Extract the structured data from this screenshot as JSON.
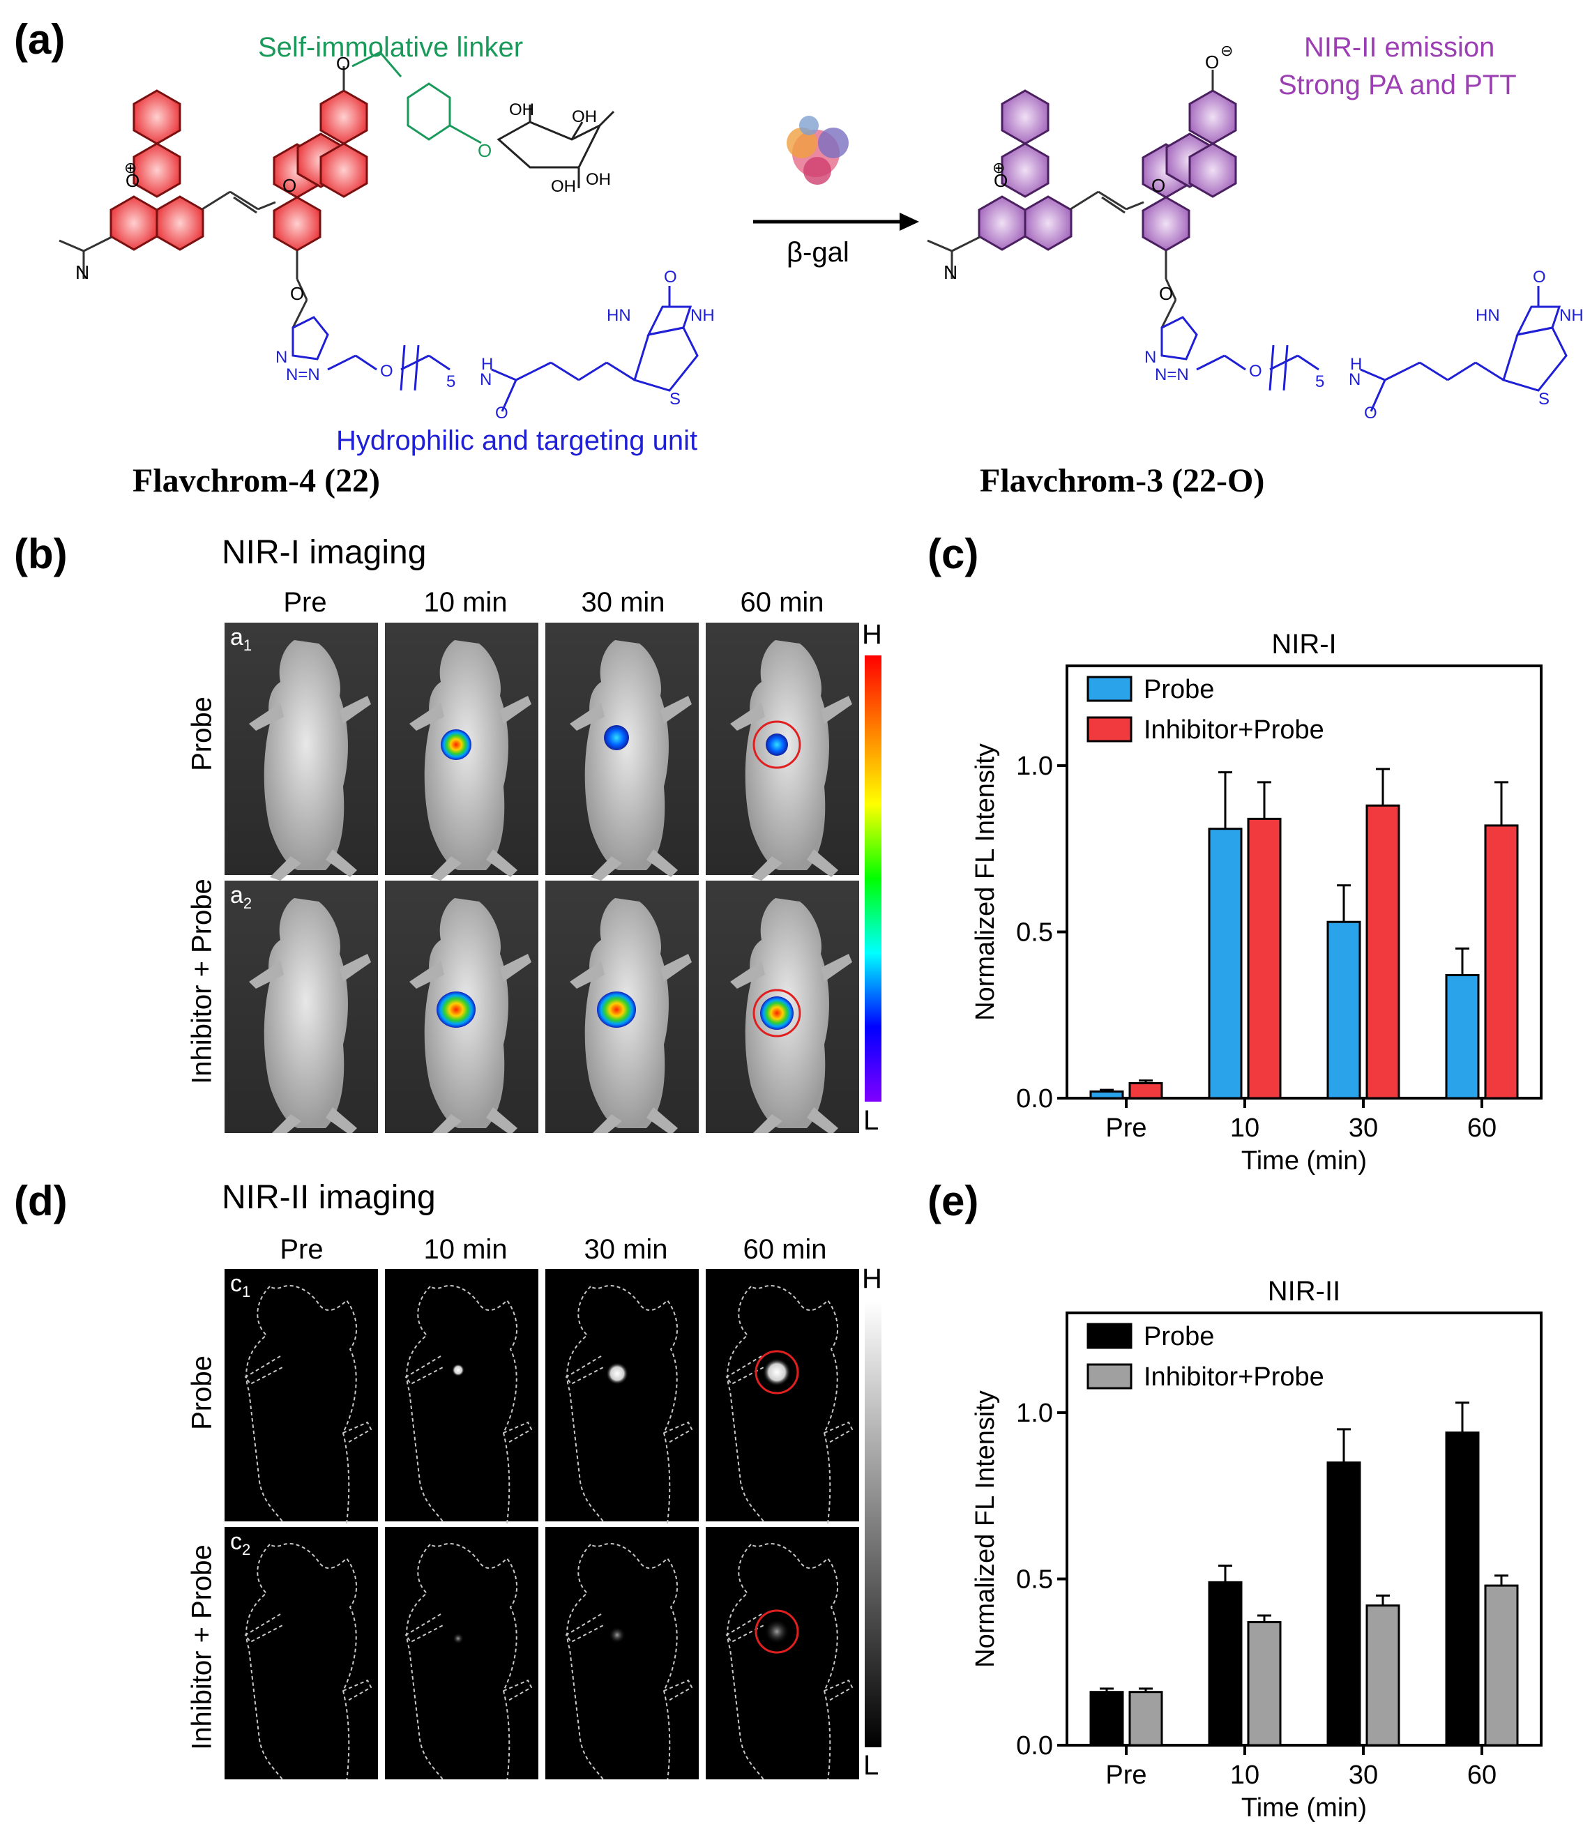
{
  "panel_a": {
    "label": "(a)",
    "linker_label": "Self-immolative linker",
    "emission_label_1": "NIR-II emission",
    "emission_label_2": "Strong PA and PTT",
    "arrow_label": "β-gal",
    "unit_label": "Hydrophilic and targeting unit",
    "compound_left": "Flavchrom-4 (22)",
    "compound_right": "Flavchrom-3 (22-O)",
    "colors": {
      "left_core": "#e8262b",
      "right_core": "#9b59b6",
      "linker": "#1a9a5a",
      "targeting": "#1f1fd6",
      "emission_text": "#9b3fb3"
    }
  },
  "panel_b": {
    "label": "(b)",
    "title": "NIR-I imaging",
    "times": [
      "Pre",
      "10 min",
      "30 min",
      "60 min"
    ],
    "rows": [
      "Probe",
      "Inhibitor + Probe"
    ],
    "corner_1": "a",
    "corner_1_sub": "1",
    "corner_2": "a",
    "corner_2_sub": "2",
    "scale_high": "H",
    "scale_low": "L"
  },
  "panel_d": {
    "label": "(d)",
    "title": "NIR-II imaging",
    "times": [
      "Pre",
      "10 min",
      "30 min",
      "60 min"
    ],
    "rows": [
      "Probe",
      "Inhibitor + Probe"
    ],
    "corner_1": "c",
    "corner_1_sub": "1",
    "corner_2": "c",
    "corner_2_sub": "2",
    "scale_high": "H",
    "scale_low": "L"
  },
  "chart_data": [
    {
      "panel": "(c)",
      "type": "bar",
      "title": "NIR-I",
      "xlabel": "Time (min)",
      "ylabel": "Normalized FL Intensity",
      "categories": [
        "Pre",
        "10",
        "30",
        "60"
      ],
      "ylim": [
        0,
        1.3
      ],
      "yticks": [
        "0.0",
        "0.5",
        "1.0"
      ],
      "legend_position": "top-left",
      "series": [
        {
          "name": "Probe",
          "color": "#2aa3ea",
          "values": [
            0.02,
            0.81,
            0.53,
            0.37
          ],
          "errors": [
            0.005,
            0.17,
            0.11,
            0.08
          ]
        },
        {
          "name": "Inhibitor+Probe",
          "color": "#f03a3e",
          "values": [
            0.045,
            0.84,
            0.88,
            0.82
          ],
          "errors": [
            0.008,
            0.11,
            0.11,
            0.13
          ]
        }
      ]
    },
    {
      "panel": "(e)",
      "type": "bar",
      "title": "NIR-II",
      "xlabel": "Time (min)",
      "ylabel": "Normalized FL Intensity",
      "categories": [
        "Pre",
        "10",
        "30",
        "60"
      ],
      "ylim": [
        0,
        1.3
      ],
      "yticks": [
        "0.0",
        "0.5",
        "1.0"
      ],
      "legend_position": "top-left",
      "series": [
        {
          "name": "Probe",
          "color": "#000000",
          "values": [
            0.16,
            0.49,
            0.85,
            0.94
          ],
          "errors": [
            0.01,
            0.05,
            0.1,
            0.09
          ]
        },
        {
          "name": "Inhibitor+Probe",
          "color": "#a0a0a0",
          "values": [
            0.16,
            0.37,
            0.42,
            0.48
          ],
          "errors": [
            0.01,
            0.02,
            0.03,
            0.03
          ]
        }
      ]
    }
  ]
}
